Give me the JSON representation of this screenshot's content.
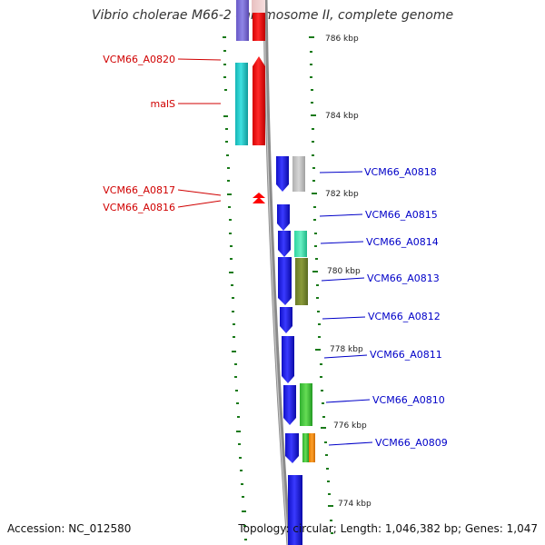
{
  "title": "Vibrio cholerae M66-2 chromosome II, complete genome",
  "footer": {
    "accession": "Accession: NC_012580",
    "topology": "Topology: circular; Length: 1,046,382 bp; Genes: 1,047"
  },
  "colors": {
    "reverse_label": "#d00000",
    "forward_label": "#0000c8",
    "backbone": "#808080",
    "tick": "#1a7a1a",
    "cds_forward": "#0000ee",
    "cds_reverse": "#ff0000"
  },
  "scale_labels": [
    "786 kbp",
    "784 kbp",
    "782 kbp",
    "780 kbp",
    "778 kbp",
    "776 kbp",
    "774 kbp"
  ],
  "reverse_genes": [
    "VCM66_A0820",
    "malS",
    "VCM66_A0817",
    "VCM66_A0816"
  ],
  "forward_genes": [
    "VCM66_A0818",
    "VCM66_A0815",
    "VCM66_A0814",
    "VCM66_A0813",
    "VCM66_A0812",
    "VCM66_A0811",
    "VCM66_A0810",
    "VCM66_A0809"
  ]
}
